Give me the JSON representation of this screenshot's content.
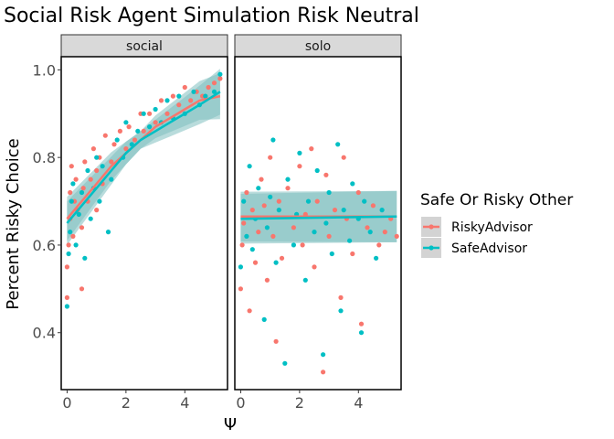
{
  "chart_data": {
    "type": "scatter",
    "title": "Social Risk Agent Simulation Risk Neutral",
    "xlabel": "Ψ",
    "ylabel": "Percent Risky Choice",
    "xlim": [
      -0.2,
      5.45
    ],
    "ylim": [
      0.27,
      1.03
    ],
    "x_ticks": [
      0,
      2,
      4
    ],
    "y_ticks": [
      0.4,
      0.6,
      0.8,
      1.0
    ],
    "y_tick_labels": [
      "0.4",
      "0.6",
      "0.8",
      "1.0"
    ],
    "grid": false,
    "legend": {
      "title": "Safe Or Risky Other",
      "position": "right",
      "entries": [
        "RiskyAdvisor",
        "SafeAdvisor"
      ]
    },
    "colors": {
      "RiskyAdvisor": "#F8766D",
      "SafeAdvisor": "#00BFC4",
      "ribbon": "#7FBFBF"
    },
    "panels": [
      {
        "label": "social",
        "series": [
          {
            "name": "RiskyAdvisor",
            "points": [
              [
                0.0,
                0.48
              ],
              [
                0.0,
                0.55
              ],
              [
                0.05,
                0.6
              ],
              [
                0.1,
                0.66
              ],
              [
                0.1,
                0.72
              ],
              [
                0.15,
                0.78
              ],
              [
                0.2,
                0.62
              ],
              [
                0.25,
                0.7
              ],
              [
                0.3,
                0.75
              ],
              [
                0.35,
                0.68
              ],
              [
                0.5,
                0.5
              ],
              [
                0.5,
                0.64
              ],
              [
                0.55,
                0.73
              ],
              [
                0.6,
                0.79
              ],
              [
                0.7,
                0.7
              ],
              [
                0.8,
                0.75
              ],
              [
                0.9,
                0.82
              ],
              [
                1.0,
                0.68
              ],
              [
                1.0,
                0.77
              ],
              [
                1.1,
                0.8
              ],
              [
                1.2,
                0.74
              ],
              [
                1.3,
                0.85
              ],
              [
                1.5,
                0.79
              ],
              [
                1.6,
                0.83
              ],
              [
                1.8,
                0.86
              ],
              [
                2.0,
                0.82
              ],
              [
                2.1,
                0.87
              ],
              [
                2.3,
                0.84
              ],
              [
                2.5,
                0.9
              ],
              [
                2.6,
                0.86
              ],
              [
                2.8,
                0.9
              ],
              [
                3.0,
                0.88
              ],
              [
                3.2,
                0.93
              ],
              [
                3.4,
                0.9
              ],
              [
                3.6,
                0.94
              ],
              [
                3.8,
                0.92
              ],
              [
                4.0,
                0.96
              ],
              [
                4.2,
                0.93
              ],
              [
                4.4,
                0.95
              ],
              [
                4.6,
                0.94
              ],
              [
                4.8,
                0.96
              ],
              [
                5.0,
                0.97
              ],
              [
                5.2,
                0.98
              ]
            ]
          },
          {
            "name": "SafeAdvisor",
            "points": [
              [
                0.0,
                0.46
              ],
              [
                0.05,
                0.58
              ],
              [
                0.1,
                0.63
              ],
              [
                0.15,
                0.7
              ],
              [
                0.2,
                0.74
              ],
              [
                0.3,
                0.6
              ],
              [
                0.4,
                0.67
              ],
              [
                0.5,
                0.72
              ],
              [
                0.6,
                0.57
              ],
              [
                0.7,
                0.77
              ],
              [
                0.8,
                0.66
              ],
              [
                0.9,
                0.73
              ],
              [
                1.0,
                0.8
              ],
              [
                1.1,
                0.7
              ],
              [
                1.2,
                0.78
              ],
              [
                1.4,
                0.63
              ],
              [
                1.5,
                0.75
              ],
              [
                1.7,
                0.84
              ],
              [
                1.9,
                0.8
              ],
              [
                2.0,
                0.88
              ],
              [
                2.2,
                0.83
              ],
              [
                2.4,
                0.86
              ],
              [
                2.6,
                0.9
              ],
              [
                2.8,
                0.87
              ],
              [
                3.0,
                0.91
              ],
              [
                3.2,
                0.88
              ],
              [
                3.4,
                0.93
              ],
              [
                3.6,
                0.89
              ],
              [
                3.8,
                0.94
              ],
              [
                4.0,
                0.9
              ],
              [
                4.3,
                0.95
              ],
              [
                4.5,
                0.92
              ],
              [
                4.7,
                0.94
              ],
              [
                5.0,
                0.95
              ],
              [
                5.2,
                0.99
              ]
            ]
          }
        ],
        "fits": [
          {
            "name": "RiskyAdvisor",
            "x": [
              0,
              0.5,
              1,
              1.5,
              2,
              2.5,
              3,
              3.5,
              4,
              4.5,
              5.2
            ],
            "y": [
              0.66,
              0.7,
              0.74,
              0.78,
              0.81,
              0.84,
              0.87,
              0.89,
              0.91,
              0.93,
              0.94
            ]
          },
          {
            "name": "SafeAdvisor",
            "x": [
              0,
              0.5,
              1,
              1.5,
              2,
              2.5,
              3,
              3.5,
              4,
              4.5,
              5.2
            ],
            "y": [
              0.65,
              0.69,
              0.73,
              0.77,
              0.81,
              0.84,
              0.86,
              0.88,
              0.9,
              0.92,
              0.95
            ]
          }
        ]
      },
      {
        "label": "solo",
        "series": [
          {
            "name": "RiskyAdvisor",
            "points": [
              [
                0.0,
                0.5
              ],
              [
                0.05,
                0.6
              ],
              [
                0.1,
                0.65
              ],
              [
                0.2,
                0.72
              ],
              [
                0.3,
                0.45
              ],
              [
                0.4,
                0.68
              ],
              [
                0.5,
                0.56
              ],
              [
                0.6,
                0.63
              ],
              [
                0.7,
                0.75
              ],
              [
                0.8,
                0.69
              ],
              [
                0.9,
                0.52
              ],
              [
                1.0,
                0.8
              ],
              [
                1.1,
                0.62
              ],
              [
                1.2,
                0.38
              ],
              [
                1.3,
                0.7
              ],
              [
                1.4,
                0.57
              ],
              [
                1.6,
                0.73
              ],
              [
                1.8,
                0.64
              ],
              [
                2.0,
                0.78
              ],
              [
                2.1,
                0.6
              ],
              [
                2.2,
                0.67
              ],
              [
                2.4,
                0.82
              ],
              [
                2.5,
                0.55
              ],
              [
                2.6,
                0.7
              ],
              [
                2.8,
                0.31
              ],
              [
                2.9,
                0.76
              ],
              [
                3.0,
                0.62
              ],
              [
                3.2,
                0.68
              ],
              [
                3.4,
                0.48
              ],
              [
                3.5,
                0.8
              ],
              [
                3.6,
                0.66
              ],
              [
                3.8,
                0.58
              ],
              [
                4.0,
                0.72
              ],
              [
                4.1,
                0.42
              ],
              [
                4.3,
                0.64
              ],
              [
                4.5,
                0.69
              ],
              [
                4.7,
                0.6
              ],
              [
                4.9,
                0.63
              ],
              [
                5.1,
                0.66
              ],
              [
                5.3,
                0.62
              ]
            ]
          },
          {
            "name": "SafeAdvisor",
            "points": [
              [
                0.0,
                0.55
              ],
              [
                0.1,
                0.7
              ],
              [
                0.2,
                0.62
              ],
              [
                0.3,
                0.78
              ],
              [
                0.4,
                0.59
              ],
              [
                0.5,
                0.66
              ],
              [
                0.6,
                0.73
              ],
              [
                0.8,
                0.43
              ],
              [
                0.9,
                0.64
              ],
              [
                1.0,
                0.71
              ],
              [
                1.1,
                0.84
              ],
              [
                1.2,
                0.56
              ],
              [
                1.3,
                0.68
              ],
              [
                1.5,
                0.33
              ],
              [
                1.6,
                0.75
              ],
              [
                1.8,
                0.6
              ],
              [
                1.9,
                0.67
              ],
              [
                2.0,
                0.81
              ],
              [
                2.2,
                0.52
              ],
              [
                2.3,
                0.7
              ],
              [
                2.5,
                0.63
              ],
              [
                2.6,
                0.77
              ],
              [
                2.8,
                0.35
              ],
              [
                2.9,
                0.65
              ],
              [
                3.0,
                0.72
              ],
              [
                3.1,
                0.58
              ],
              [
                3.3,
                0.83
              ],
              [
                3.4,
                0.45
              ],
              [
                3.5,
                0.68
              ],
              [
                3.7,
                0.61
              ],
              [
                3.8,
                0.74
              ],
              [
                4.0,
                0.66
              ],
              [
                4.1,
                0.4
              ],
              [
                4.2,
                0.7
              ],
              [
                4.4,
                0.63
              ],
              [
                4.6,
                0.57
              ],
              [
                4.8,
                0.68
              ]
            ]
          }
        ],
        "fits": [
          {
            "name": "RiskyAdvisor",
            "x": [
              0,
              5.3
            ],
            "y": [
              0.665,
              0.665
            ]
          },
          {
            "name": "SafeAdvisor",
            "x": [
              0,
              5.3
            ],
            "y": [
              0.66,
              0.665
            ]
          }
        ]
      }
    ]
  }
}
